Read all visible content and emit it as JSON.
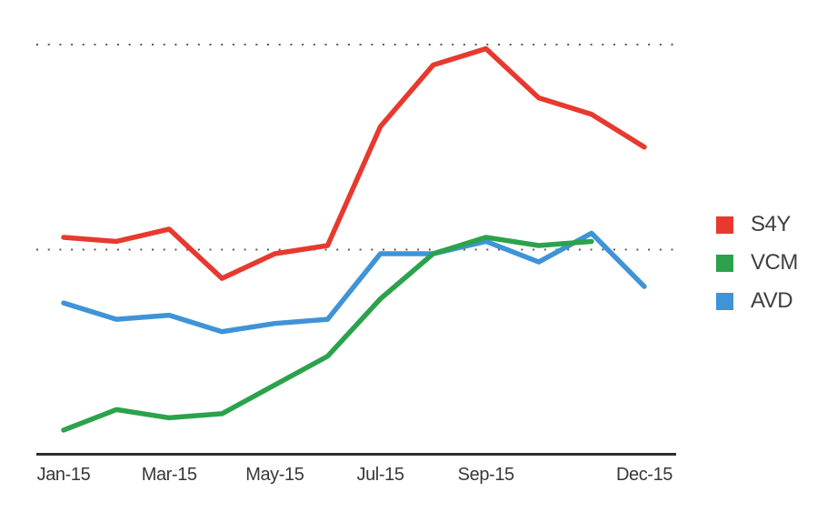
{
  "chart_data": {
    "type": "line",
    "title": "",
    "xlabel": "",
    "ylabel": "",
    "x": [
      "Jan-15",
      "Feb-15",
      "Mar-15",
      "Apr-15",
      "May-15",
      "Jun-15",
      "Jul-15",
      "Aug-15",
      "Sep-15",
      "Oct-15",
      "Nov-15",
      "Dec-15"
    ],
    "x_tick_labels": [
      "Jan-15",
      "Mar-15",
      "May-15",
      "Jul-15",
      "Sep-15",
      "Dec-15"
    ],
    "x_tick_indices": [
      0,
      2,
      4,
      6,
      8,
      11
    ],
    "series": [
      {
        "name": "S4Y",
        "color": "#e7392e",
        "values": [
          53,
          52,
          55,
          43,
          49,
          51,
          80,
          95,
          99,
          87,
          83,
          75
        ]
      },
      {
        "name": "VCM",
        "color": "#2ba24b",
        "values": [
          6,
          11,
          9,
          10,
          17,
          24,
          38,
          49,
          53,
          51,
          52,
          null
        ]
      },
      {
        "name": "AVD",
        "color": "#3f93d7",
        "values": [
          37,
          33,
          34,
          30,
          32,
          33,
          49,
          49,
          52,
          47,
          54,
          41
        ]
      }
    ],
    "ylim": [
      0,
      100
    ],
    "gridlines": {
      "values": [
        50,
        100
      ],
      "style": "dotted",
      "color": "#5a5a5a"
    },
    "axis_color": "#2e2e2e",
    "legend_position": "right",
    "legend_order": [
      "S4Y",
      "VCM",
      "AVD"
    ]
  }
}
